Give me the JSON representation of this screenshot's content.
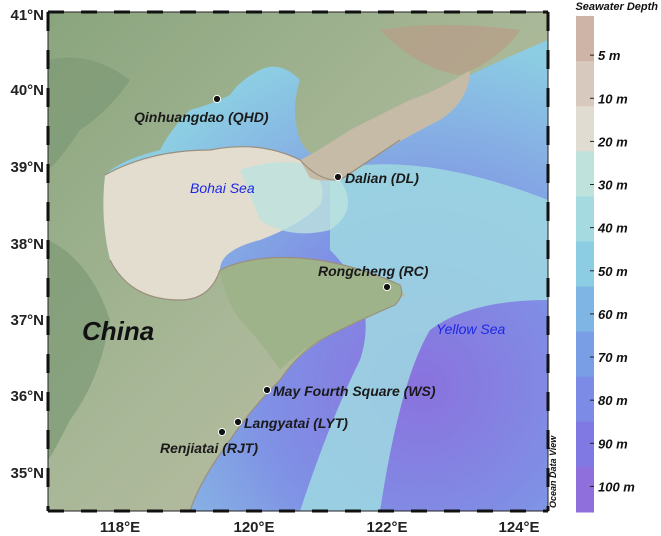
{
  "map": {
    "lat_labels": [
      "41°N",
      "40°N",
      "39°N",
      "38°N",
      "37°N",
      "36°N",
      "35°N"
    ],
    "lon_labels": [
      "118°E",
      "120°E",
      "122°E",
      "124°E"
    ],
    "country_label": "China",
    "sea_labels": [
      {
        "text": "Bohai Sea",
        "color": "#1a28e6"
      },
      {
        "text": "Yellow Sea",
        "color": "#1a28e6"
      }
    ],
    "stations": [
      {
        "label": "Qinhuangdao (QHD)"
      },
      {
        "label": "Dalian (DL)"
      },
      {
        "label": "Rongcheng (RC)"
      },
      {
        "label": "May Fourth Square (WS)"
      },
      {
        "label": "Langyatai (LYT)"
      },
      {
        "label": "Renjiatai (RJT)"
      }
    ],
    "credit": "Ocean Data View"
  },
  "colorbar": {
    "title": "Seawater Depth",
    "labels": [
      "5 m",
      "10 m",
      "20 m",
      "30 m",
      "40 m",
      "50 m",
      "60 m",
      "70 m",
      "80 m",
      "90 m",
      "100 m"
    ],
    "colors": [
      "#cdb4a6",
      "#d7c9be",
      "#e1dcd1",
      "#bfe3dc",
      "#a5dbe0",
      "#8ccde3",
      "#7fb5e4",
      "#7a9ee6",
      "#7c8be6",
      "#8179e3",
      "#8f6fdc"
    ]
  }
}
